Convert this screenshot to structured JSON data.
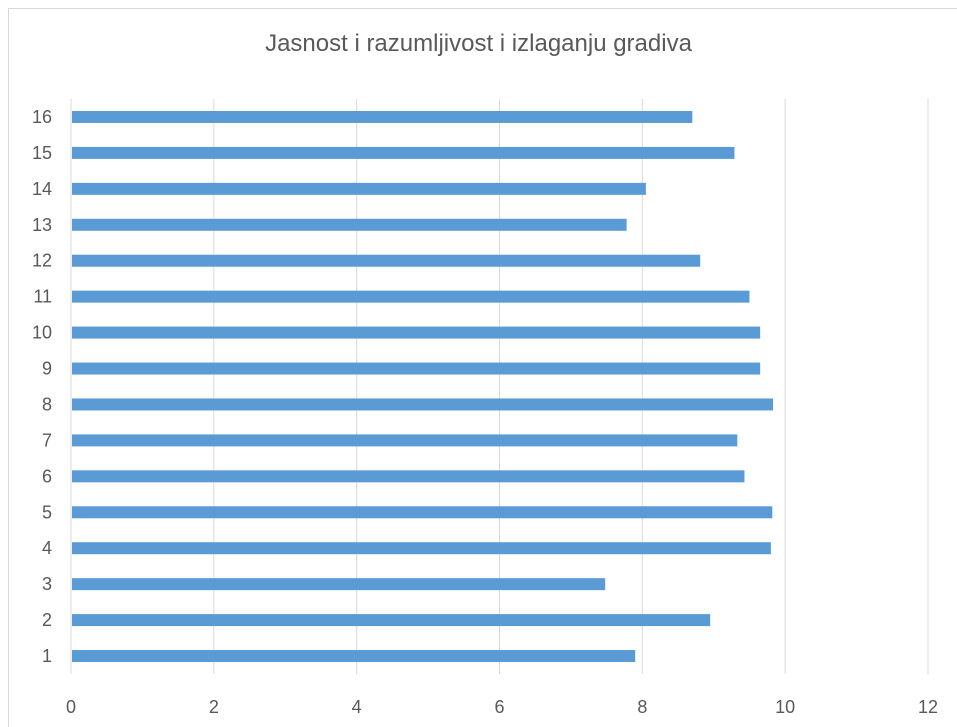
{
  "chart_data": {
    "type": "bar",
    "orientation": "horizontal",
    "title": "Jasnost i razumljivost i izlaganju gradiva",
    "categories": [
      "1",
      "2",
      "3",
      "4",
      "5",
      "6",
      "7",
      "8",
      "9",
      "10",
      "11",
      "12",
      "13",
      "14",
      "15",
      "16"
    ],
    "values": [
      7.9,
      8.95,
      7.48,
      9.8,
      9.82,
      9.43,
      9.33,
      9.83,
      9.65,
      9.65,
      9.5,
      8.81,
      7.78,
      8.05,
      9.29,
      8.7
    ],
    "xlabel": "",
    "ylabel": "",
    "xlim": [
      0,
      12
    ],
    "x_ticks": [
      "0",
      "2",
      "4",
      "6",
      "8",
      "10",
      "12"
    ],
    "grid": "vertical",
    "legend": "none",
    "colors": {
      "bar": "#5b9bd5",
      "grid": "#d9d9d9",
      "text": "#595959"
    }
  }
}
